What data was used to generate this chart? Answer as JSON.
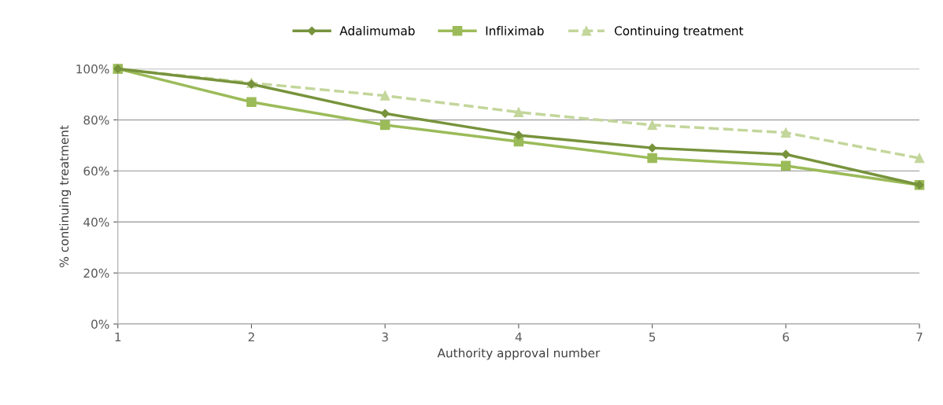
{
  "chart_data": {
    "type": "line",
    "xlabel": "Authority approval number",
    "ylabel": "% continuing treatment",
    "x": [
      1,
      2,
      3,
      4,
      5,
      6,
      7
    ],
    "series": [
      {
        "name": "Adalimumab",
        "color": "#77933c",
        "marker": "diamond",
        "line_style": "solid",
        "values": [
          100,
          94,
          82.5,
          74,
          69,
          66.5,
          54.5
        ]
      },
      {
        "name": "Infliximab",
        "color": "#9bbb59",
        "marker": "square",
        "line_style": "solid",
        "values": [
          100,
          87,
          78,
          71.5,
          65,
          62,
          54.5
        ]
      },
      {
        "name": "Continuing treatment",
        "color": "#c3d69b",
        "marker": "triangle",
        "line_style": "dashed",
        "values": [
          100,
          94.5,
          89.5,
          83,
          78,
          75,
          65
        ]
      }
    ],
    "xlim": [
      1,
      7
    ],
    "xticks": [
      1,
      2,
      3,
      4,
      5,
      6,
      7
    ],
    "ylim": [
      0,
      100
    ],
    "yticks": [
      {
        "value": 0,
        "label": "0%"
      },
      {
        "value": 20,
        "label": "20%"
      },
      {
        "value": 40,
        "label": "40%"
      },
      {
        "value": 60,
        "label": "60%"
      },
      {
        "value": 80,
        "label": "80%"
      },
      {
        "value": 100,
        "label": "100%"
      }
    ],
    "grid": "y",
    "legend": "top"
  }
}
